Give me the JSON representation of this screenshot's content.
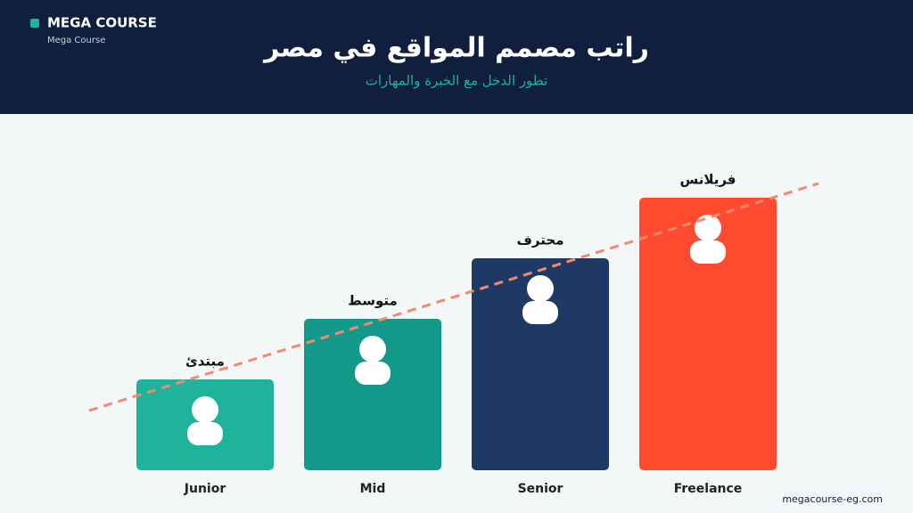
{
  "brand": {
    "name": "MEGA COURSE",
    "tagline": "Mega Course"
  },
  "footer": "megacourse-eg.com",
  "chart_data": {
    "type": "bar",
    "title": "راتب مصمم المواقع في مصر",
    "subtitle": "تطور الدخل مع الخبرة والمهارات",
    "categories": [
      "Junior",
      "Mid",
      "Senior",
      "Freelance"
    ],
    "bar_labels": [
      "مبتدئ",
      "متوسط",
      "محترف",
      "فريلانس"
    ],
    "values": [
      1.5,
      2.5,
      3.5,
      4.5
    ],
    "colors": [
      "#1fb39b",
      "#12998a",
      "#1e3a64",
      "#ff4a2f"
    ],
    "ylim": [
      0,
      4.5
    ]
  }
}
